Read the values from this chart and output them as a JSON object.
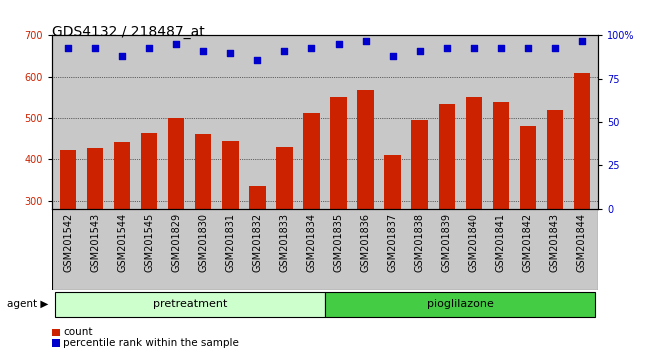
{
  "title": "GDS4132 / 218487_at",
  "samples": [
    "GSM201542",
    "GSM201543",
    "GSM201544",
    "GSM201545",
    "GSM201829",
    "GSM201830",
    "GSM201831",
    "GSM201832",
    "GSM201833",
    "GSM201834",
    "GSM201835",
    "GSM201836",
    "GSM201837",
    "GSM201838",
    "GSM201839",
    "GSM201840",
    "GSM201841",
    "GSM201842",
    "GSM201843",
    "GSM201844"
  ],
  "bar_values": [
    422,
    428,
    443,
    463,
    500,
    462,
    444,
    335,
    430,
    513,
    550,
    568,
    410,
    494,
    534,
    550,
    538,
    480,
    520,
    610
  ],
  "percentile_values": [
    93,
    93,
    88,
    93,
    95,
    91,
    90,
    86,
    91,
    93,
    95,
    97,
    88,
    91,
    93,
    93,
    93,
    93,
    93,
    97
  ],
  "bar_color": "#cc2200",
  "dot_color": "#0000cc",
  "ylim_left": [
    280,
    700
  ],
  "ylim_right": [
    0,
    100
  ],
  "yticks_left": [
    300,
    400,
    500,
    600,
    700
  ],
  "yticks_right": [
    0,
    25,
    50,
    75,
    100
  ],
  "group1_label": "pretreatment",
  "group2_label": "pioglilazone",
  "group1_count": 10,
  "group2_count": 10,
  "agent_label": "agent",
  "legend_count_label": "count",
  "legend_pct_label": "percentile rank within the sample",
  "grid_color": "#000000",
  "bg_color": "#c8c8c8",
  "group1_color": "#ccffcc",
  "group2_color": "#44cc44",
  "title_fontsize": 10,
  "tick_fontsize": 7,
  "bar_width": 0.6
}
